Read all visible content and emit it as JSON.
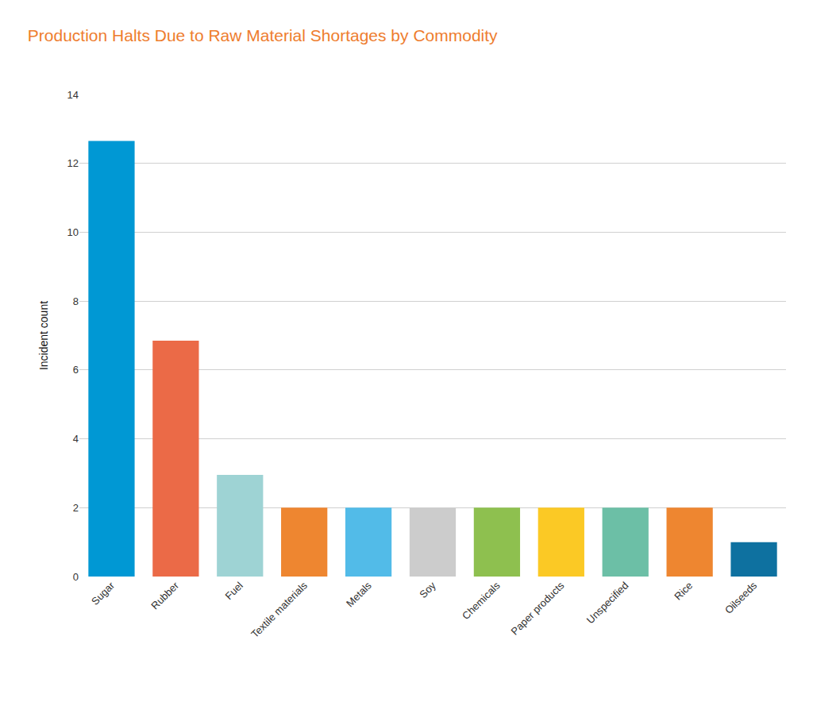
{
  "chart_data": {
    "type": "bar",
    "title": "Production Halts Due to Raw Material Shortages by Commodity",
    "y_label": "Incident count",
    "categories": [
      "Sugar",
      "Rubber",
      "Fuel",
      "Textile materials",
      "Metals",
      "Soy",
      "Chemicals",
      "Paper products",
      "Unspecified",
      "Rice",
      "Oilseeds"
    ],
    "values": [
      12.65,
      6.85,
      2.95,
      2,
      2,
      2,
      2,
      2,
      2,
      2,
      1
    ],
    "colors": [
      "#0098d4",
      "#eb6a47",
      "#9ed3d4",
      "#ee8630",
      "#52bbe8",
      "#cccccc",
      "#8ec04f",
      "#fbc925",
      "#6cbfa6",
      "#ee8630",
      "#0e71a0"
    ],
    "ylim": [
      0,
      14
    ],
    "yticks": [
      0,
      2,
      4,
      6,
      8,
      10,
      12,
      14
    ],
    "grid": true
  }
}
